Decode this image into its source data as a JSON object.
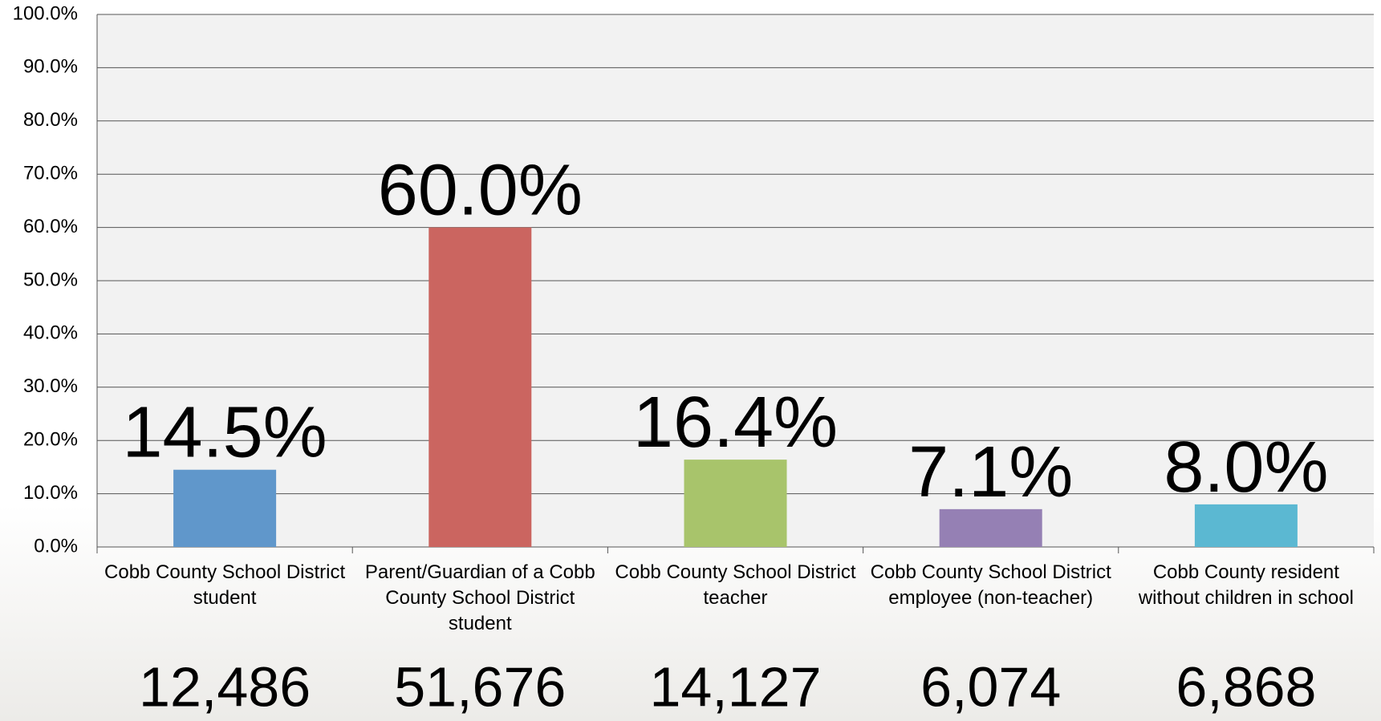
{
  "chart_data": {
    "type": "bar",
    "categories": [
      "Cobb County School District student",
      "Parent/Guardian of a Cobb County School District student",
      "Cobb County School District teacher",
      "Cobb County School District employee (non-teacher)",
      "Cobb County resident without children in school"
    ],
    "values": [
      14.5,
      60.0,
      16.4,
      7.1,
      8.0
    ],
    "value_labels": [
      "14.5%",
      "60.0%",
      "16.4%",
      "7.1%",
      "8.0%"
    ],
    "counts": [
      "12,486",
      "51,676",
      "14,127",
      "6,074",
      "6,868"
    ],
    "colors": [
      "#6097cb",
      "#cb6560",
      "#a8c46b",
      "#9580b4",
      "#5bb8d2"
    ],
    "ylim": [
      0,
      100
    ],
    "yticks": [
      {
        "value": 0,
        "label": "0.0%"
      },
      {
        "value": 10,
        "label": "10.0%"
      },
      {
        "value": 20,
        "label": "20.0%"
      },
      {
        "value": 30,
        "label": "30.0%"
      },
      {
        "value": 40,
        "label": "40.0%"
      },
      {
        "value": 50,
        "label": "50.0%"
      },
      {
        "value": 60,
        "label": "60.0%"
      },
      {
        "value": 70,
        "label": "70.0%"
      },
      {
        "value": 80,
        "label": "80.0%"
      },
      {
        "value": 90,
        "label": "90.0%"
      },
      {
        "value": 100,
        "label": "100.0%"
      }
    ],
    "grid": true
  }
}
